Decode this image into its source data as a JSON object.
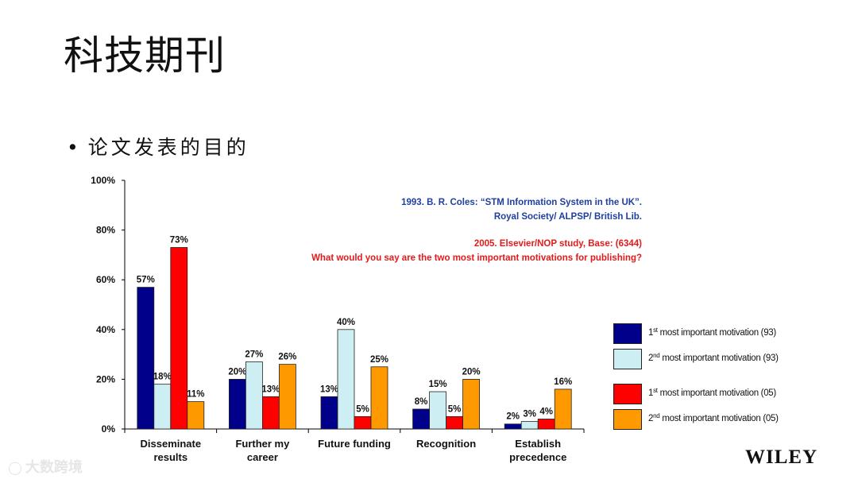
{
  "title": "科技期刊",
  "bullet": "论文发表的目的",
  "sources": {
    "line1": "1993. B. R. Coles: “STM Information System in the UK”.",
    "line2": "Royal Society/ ALPSP/ British Lib.",
    "line3": "2005. Elsevier/NOP study, Base: (6344)",
    "line4": "What would you say are the two most important motivations for publishing?"
  },
  "publisher": "WILEY",
  "watermark": "大数跨境",
  "chart_data": {
    "type": "bar",
    "categories": [
      [
        "Disseminate",
        "results"
      ],
      [
        "Further my",
        "career"
      ],
      [
        "Future funding"
      ],
      [
        "Recognition"
      ],
      [
        "Establish",
        "precedence"
      ]
    ],
    "series": [
      {
        "name_parts": [
          "1",
          "st",
          " most important motivation (93)"
        ],
        "color": "#00008b",
        "values": [
          57,
          20,
          13,
          8,
          2
        ]
      },
      {
        "name_parts": [
          "2",
          "nd",
          " most important motivation (93)"
        ],
        "color": "#cdeef2",
        "values": [
          18,
          27,
          40,
          15,
          3
        ]
      },
      {
        "name_parts": [
          "1",
          "st",
          " most important motivation (05)"
        ],
        "color": "#ff0000",
        "values": [
          73,
          13,
          5,
          5,
          4
        ]
      },
      {
        "name_parts": [
          "2",
          "nd",
          " most important motivation (05)"
        ],
        "color": "#ff9900",
        "values": [
          11,
          26,
          25,
          20,
          16
        ]
      }
    ],
    "yticks": [
      "0%",
      "20%",
      "40%",
      "60%",
      "80%",
      "100%"
    ],
    "ylim": [
      0,
      100
    ],
    "value_suffix": "%",
    "grid": false,
    "legend": "right"
  }
}
